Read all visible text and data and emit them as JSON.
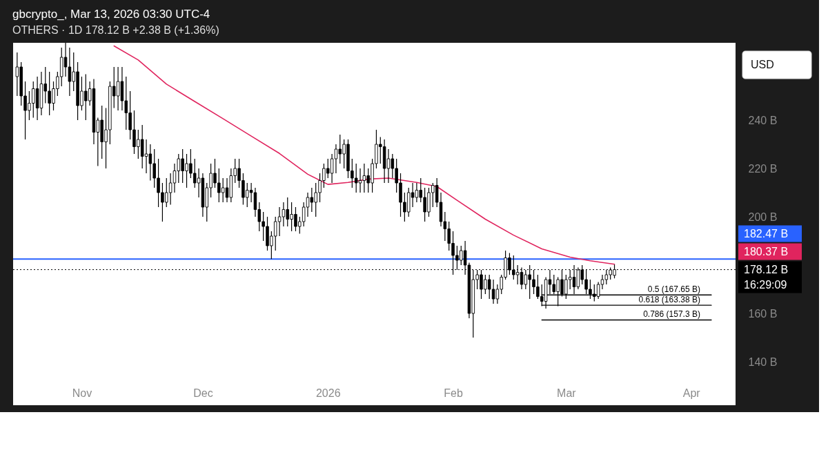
{
  "chart_data": {
    "type": "candlestick",
    "title": "gbcrypto_, Mar 13, 2026 03:30 UTC-4",
    "subtitle": "OTHERS · 1D   178.12 B  +2.38 B (+1.36%)",
    "x": [
      "2025-10-16",
      "2025-10-17",
      "2025-10-18",
      "2025-10-19",
      "2025-10-20",
      "2025-10-21",
      "2025-10-22",
      "2025-10-23",
      "2025-10-24",
      "2025-10-25",
      "2025-10-26",
      "2025-10-27",
      "2025-10-28",
      "2025-10-29",
      "2025-10-30",
      "2025-10-31",
      "2025-11-01",
      "2025-11-02",
      "2025-11-03",
      "2025-11-04",
      "2025-11-05",
      "2025-11-06",
      "2025-11-07",
      "2025-11-08",
      "2025-11-09",
      "2025-11-10",
      "2025-11-11",
      "2025-11-12",
      "2025-11-13",
      "2025-11-14",
      "2025-11-15",
      "2025-11-16",
      "2025-11-17",
      "2025-11-18",
      "2025-11-19",
      "2025-11-20",
      "2025-11-21",
      "2025-11-22",
      "2025-11-23",
      "2025-11-24",
      "2025-11-25",
      "2025-11-26",
      "2025-11-27",
      "2025-11-28",
      "2025-11-29",
      "2025-11-30",
      "2025-12-01",
      "2025-12-02",
      "2025-12-03",
      "2025-12-04",
      "2025-12-05",
      "2025-12-06",
      "2025-12-07",
      "2025-12-08",
      "2025-12-09",
      "2025-12-10",
      "2025-12-11",
      "2025-12-12",
      "2025-12-13",
      "2025-12-14",
      "2025-12-15",
      "2025-12-16",
      "2025-12-17",
      "2025-12-18",
      "2025-12-19",
      "2025-12-20",
      "2025-12-21",
      "2025-12-22",
      "2025-12-23",
      "2025-12-24",
      "2025-12-25",
      "2025-12-26",
      "2025-12-27",
      "2025-12-28",
      "2025-12-29",
      "2025-12-30",
      "2025-12-31",
      "2026-01-01",
      "2026-01-02",
      "2026-01-03",
      "2026-01-04",
      "2026-01-05",
      "2026-01-06",
      "2026-01-07",
      "2026-01-08",
      "2026-01-09",
      "2026-01-10",
      "2026-01-11",
      "2026-01-12",
      "2026-01-13",
      "2026-01-14",
      "2026-01-15",
      "2026-01-16",
      "2026-01-17",
      "2026-01-18",
      "2026-01-19",
      "2026-01-20",
      "2026-01-21",
      "2026-01-22",
      "2026-01-23",
      "2026-01-24",
      "2026-01-25",
      "2026-01-26",
      "2026-01-27",
      "2026-01-28",
      "2026-01-29",
      "2026-01-30",
      "2026-01-31",
      "2026-02-01",
      "2026-02-02",
      "2026-02-03",
      "2026-02-04",
      "2026-02-05",
      "2026-02-06",
      "2026-02-07",
      "2026-02-08",
      "2026-02-09",
      "2026-02-10",
      "2026-02-11",
      "2026-02-12",
      "2026-02-13",
      "2026-02-14",
      "2026-02-15",
      "2026-02-16",
      "2026-02-17",
      "2026-02-18",
      "2026-02-19",
      "2026-02-20",
      "2026-02-21",
      "2026-02-22",
      "2026-02-23",
      "2026-02-24",
      "2026-02-25",
      "2026-02-26",
      "2026-02-27",
      "2026-02-28",
      "2026-03-01",
      "2026-03-02",
      "2026-03-03",
      "2026-03-04",
      "2026-03-05",
      "2026-03-06",
      "2026-03-07",
      "2026-03-08",
      "2026-03-09",
      "2026-03-10",
      "2026-03-11",
      "2026-03-12",
      "2026-03-13"
    ],
    "ohlc": [
      [
        258,
        268,
        250,
        262
      ],
      [
        262,
        264,
        246,
        250
      ],
      [
        250,
        256,
        232,
        244
      ],
      [
        244,
        252,
        240,
        247
      ],
      [
        247,
        256,
        241,
        253
      ],
      [
        253,
        258,
        240,
        245
      ],
      [
        245,
        260,
        242,
        255
      ],
      [
        255,
        262,
        247,
        252
      ],
      [
        252,
        260,
        242,
        247
      ],
      [
        247,
        256,
        244,
        253
      ],
      [
        253,
        260,
        250,
        258
      ],
      [
        258,
        270,
        254,
        266
      ],
      [
        266,
        272,
        258,
        262
      ],
      [
        262,
        270,
        250,
        256
      ],
      [
        256,
        268,
        252,
        260
      ],
      [
        260,
        264,
        240,
        246
      ],
      [
        246,
        258,
        244,
        252
      ],
      [
        252,
        259,
        240,
        248
      ],
      [
        248,
        256,
        246,
        253
      ],
      [
        253,
        257,
        230,
        235
      ],
      [
        235,
        241,
        221,
        240
      ],
      [
        240,
        246,
        224,
        231
      ],
      [
        231,
        245,
        220,
        236
      ],
      [
        236,
        256,
        230,
        254
      ],
      [
        254,
        262,
        245,
        250
      ],
      [
        250,
        262,
        244,
        256
      ],
      [
        256,
        262,
        244,
        248
      ],
      [
        248,
        258,
        236,
        243
      ],
      [
        243,
        252,
        232,
        236
      ],
      [
        236,
        244,
        226,
        229
      ],
      [
        229,
        236,
        224,
        232
      ],
      [
        232,
        238,
        220,
        225
      ],
      [
        225,
        232,
        218,
        226
      ],
      [
        226,
        230,
        215,
        222
      ],
      [
        222,
        228,
        212,
        216
      ],
      [
        216,
        224,
        204,
        210
      ],
      [
        210,
        214,
        198,
        206
      ],
      [
        206,
        216,
        204,
        210
      ],
      [
        210,
        218,
        205,
        214
      ],
      [
        214,
        222,
        210,
        219
      ],
      [
        219,
        226,
        214,
        224
      ],
      [
        224,
        228,
        214,
        219
      ],
      [
        219,
        226,
        212,
        222
      ],
      [
        222,
        228,
        216,
        218
      ],
      [
        218,
        224,
        212,
        214
      ],
      [
        214,
        220,
        208,
        216
      ],
      [
        216,
        218,
        200,
        204
      ],
      [
        204,
        214,
        198,
        212
      ],
      [
        212,
        222,
        208,
        218
      ],
      [
        218,
        224,
        212,
        214
      ],
      [
        214,
        220,
        206,
        210
      ],
      [
        210,
        216,
        206,
        212
      ],
      [
        212,
        216,
        206,
        208
      ],
      [
        208,
        220,
        206,
        217
      ],
      [
        217,
        224,
        214,
        220
      ],
      [
        220,
        224,
        212,
        215
      ],
      [
        215,
        218,
        205,
        208
      ],
      [
        208,
        214,
        204,
        211
      ],
      [
        211,
        214,
        206,
        210
      ],
      [
        210,
        212,
        200,
        203
      ],
      [
        203,
        206,
        194,
        198
      ],
      [
        198,
        202,
        190,
        196
      ],
      [
        196,
        200,
        186,
        188
      ],
      [
        188,
        194,
        182.5,
        192
      ],
      [
        192,
        200,
        186,
        198
      ],
      [
        198,
        204,
        192,
        200
      ],
      [
        200,
        206,
        196,
        203
      ],
      [
        203,
        208,
        196,
        199
      ],
      [
        199,
        206,
        194,
        201
      ],
      [
        201,
        204,
        194,
        196
      ],
      [
        196,
        200,
        193,
        198
      ],
      [
        198,
        206,
        196,
        204
      ],
      [
        204,
        210,
        200,
        208
      ],
      [
        208,
        212,
        202,
        206
      ],
      [
        206,
        214,
        200,
        210
      ],
      [
        210,
        218,
        206,
        215
      ],
      [
        215,
        222,
        212,
        220
      ],
      [
        220,
        224,
        216,
        218
      ],
      [
        218,
        226,
        214,
        224
      ],
      [
        224,
        230,
        218,
        228
      ],
      [
        228,
        234,
        222,
        226
      ],
      [
        226,
        232,
        220,
        230
      ],
      [
        230,
        232,
        216,
        219
      ],
      [
        219,
        224,
        212,
        216
      ],
      [
        216,
        222,
        210,
        214
      ],
      [
        214,
        220,
        210,
        215
      ],
      [
        215,
        222,
        210,
        217
      ],
      [
        217,
        220,
        210,
        214
      ],
      [
        214,
        224,
        210,
        222
      ],
      [
        222,
        236,
        220,
        230
      ],
      [
        230,
        233,
        222,
        229
      ],
      [
        229,
        232,
        214,
        220
      ],
      [
        220,
        228,
        214,
        224
      ],
      [
        224,
        226,
        216,
        220
      ],
      [
        220,
        224,
        210,
        214
      ],
      [
        214,
        218,
        200,
        206
      ],
      [
        206,
        210,
        198,
        202
      ],
      [
        202,
        212,
        200,
        210
      ],
      [
        210,
        214,
        204,
        208
      ],
      [
        208,
        214,
        206,
        211
      ],
      [
        211,
        216,
        206,
        208
      ],
      [
        208,
        212,
        198,
        202
      ],
      [
        202,
        212,
        200,
        210
      ],
      [
        210,
        214,
        204,
        213
      ],
      [
        213,
        216,
        204,
        206
      ],
      [
        206,
        210,
        196,
        198
      ],
      [
        198,
        202,
        190,
        195
      ],
      [
        195,
        198,
        186,
        189
      ],
      [
        189,
        194,
        176,
        184
      ],
      [
        184,
        188,
        178,
        182
      ],
      [
        182,
        188,
        180,
        186
      ],
      [
        186,
        190,
        176,
        180
      ],
      [
        180,
        181,
        158,
        160
      ],
      [
        160,
        178,
        150,
        174
      ],
      [
        174,
        178,
        170,
        176
      ],
      [
        176,
        178,
        166,
        170
      ],
      [
        170,
        176,
        168,
        174
      ],
      [
        174,
        176,
        166,
        170
      ],
      [
        170,
        174,
        164,
        166
      ],
      [
        166,
        172,
        164,
        170
      ],
      [
        170,
        176,
        168,
        175
      ],
      [
        175,
        186,
        174,
        183
      ],
      [
        183,
        185,
        176,
        178
      ],
      [
        178,
        184,
        174,
        176
      ],
      [
        176,
        180,
        172,
        177
      ],
      [
        177,
        179,
        170,
        172
      ],
      [
        172,
        178,
        170,
        176
      ],
      [
        176,
        180,
        166,
        174
      ],
      [
        174,
        178,
        168,
        171
      ],
      [
        171,
        176,
        166,
        167
      ],
      [
        167,
        172,
        163,
        165
      ],
      [
        165,
        175,
        162,
        174
      ],
      [
        174,
        178,
        168,
        172
      ],
      [
        172,
        176,
        168,
        169
      ],
      [
        169,
        175,
        163,
        174
      ],
      [
        174,
        178,
        167,
        168
      ],
      [
        168,
        176,
        166,
        174
      ],
      [
        174,
        178,
        170,
        175
      ],
      [
        175,
        180,
        168,
        171
      ],
      [
        171,
        179,
        170,
        178
      ],
      [
        178,
        180,
        172,
        174
      ],
      [
        174,
        178,
        168,
        170
      ],
      [
        170,
        174,
        166,
        168
      ],
      [
        168,
        172,
        165,
        167
      ],
      [
        167,
        173,
        166,
        172
      ],
      [
        172,
        176,
        170,
        174
      ],
      [
        174,
        178,
        172,
        176
      ],
      [
        176,
        179,
        174,
        178
      ],
      [
        175.74,
        180.2,
        174.5,
        178.12
      ]
    ],
    "series": [
      {
        "type": "line",
        "color": "#e0245e",
        "x": [
          "2025-11-09",
          "2025-11-15",
          "2025-11-22",
          "2025-11-29",
          "2025-12-06",
          "2025-12-13",
          "2025-12-20",
          "2025-12-27",
          "2026-01-01",
          "2026-01-06",
          "2026-01-11",
          "2026-01-16",
          "2026-01-23",
          "2026-01-28",
          "2026-02-02",
          "2026-02-09",
          "2026-02-16",
          "2026-02-23",
          "2026-03-02",
          "2026-03-07",
          "2026-03-13"
        ],
        "values": [
          270.7,
          264.9,
          254.9,
          247.7,
          240.6,
          233.4,
          226.2,
          217.6,
          213.4,
          214.2,
          215.6,
          216,
          214.2,
          212.5,
          206.8,
          199,
          192.4,
          186.7,
          183.3,
          181.8,
          180.37
        ]
      },
      {
        "type": "line",
        "name": "0.5 (167.65 B)",
        "color": "#000000",
        "x": [
          "2026-02-23",
          "2026-04-06"
        ],
        "values": [
          167.65,
          167.65
        ]
      },
      {
        "type": "line",
        "name": "0.618 (163.38 B)",
        "color": "#000000",
        "x": [
          "2026-02-23",
          "2026-04-06"
        ],
        "values": [
          163.38,
          163.38
        ]
      },
      {
        "type": "line",
        "name": "0.786 (157.3 B)",
        "color": "#000000",
        "x": [
          "2026-02-23",
          "2026-04-06"
        ],
        "values": [
          157.3,
          157.3
        ]
      }
    ],
    "ref_lines": [
      {
        "axis": "y",
        "value": 182.47,
        "label": "182.47 B",
        "color": "#2962ff",
        "line_style": "solid"
      },
      {
        "axis": "y",
        "value": 178.12,
        "label": "178.12 B",
        "color": "#000000",
        "line_style": "dotted"
      }
    ],
    "annotations": [
      "USD",
      "180.37 B",
      "16:29:09"
    ],
    "xlim": [
      "2025-10-15",
      "2026-04-12"
    ],
    "xticks": [
      {
        "value": "2025-11-01",
        "label": "Nov"
      },
      {
        "value": "2025-12-01",
        "label": "Dec"
      },
      {
        "value": "2026-01-01",
        "label": "2026"
      },
      {
        "value": "2026-02-01",
        "label": "Feb"
      },
      {
        "value": "2026-03-01",
        "label": "Mar"
      },
      {
        "value": "2026-04-01",
        "label": "Apr"
      }
    ],
    "ylim": [
      122,
      272
    ],
    "yticks": [
      {
        "value": 140,
        "label": "140 B"
      },
      {
        "value": 160,
        "label": "160 B"
      },
      {
        "value": 200,
        "label": "200 B"
      },
      {
        "value": 220,
        "label": "220 B"
      },
      {
        "value": 240,
        "label": "240 B"
      }
    ],
    "grid": false
  }
}
